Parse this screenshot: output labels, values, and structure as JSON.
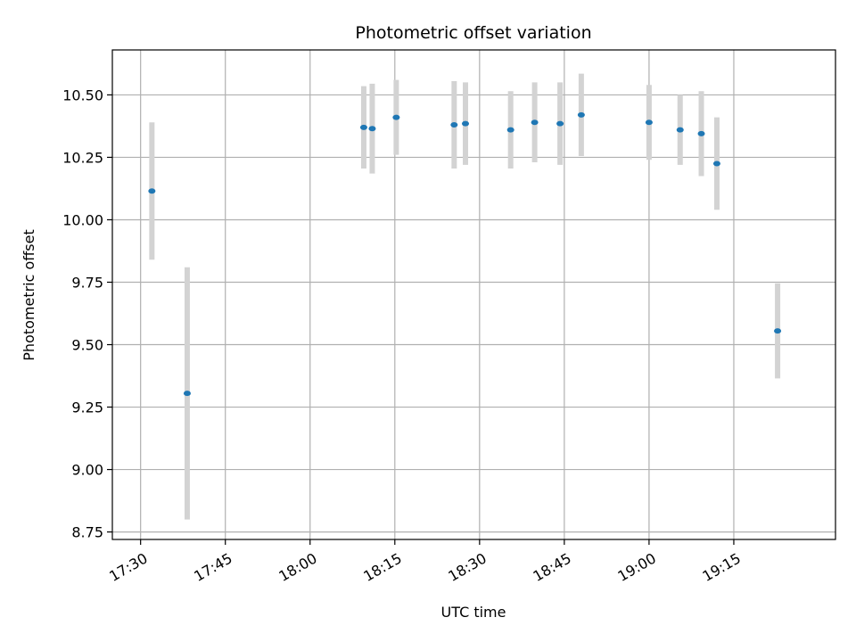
{
  "chart_data": {
    "type": "scatter",
    "title": "Photometric offset variation",
    "xlabel": "UTC time",
    "ylabel": "Photometric offset",
    "x_range": [
      "17:25",
      "19:33"
    ],
    "ylim": [
      8.72,
      10.68
    ],
    "x_ticks": [
      "17:30",
      "17:45",
      "18:00",
      "18:15",
      "18:30",
      "18:45",
      "19:00",
      "19:15"
    ],
    "y_ticks": [
      "8.75",
      "9.00",
      "9.25",
      "9.50",
      "9.75",
      "10.00",
      "10.25",
      "10.50"
    ],
    "grid": true,
    "point_color": "#1f77b4",
    "errorbar_color": "#d3d3d3",
    "series": [
      {
        "points": [
          {
            "x": "17:32:00",
            "y": 10.115,
            "err": 0.275
          },
          {
            "x": "17:38:15",
            "y": 9.305,
            "err": 0.505
          },
          {
            "x": "18:09:30",
            "y": 10.37,
            "err": 0.165
          },
          {
            "x": "18:11:00",
            "y": 10.365,
            "err": 0.18
          },
          {
            "x": "18:15:15",
            "y": 10.41,
            "err": 0.15
          },
          {
            "x": "18:25:30",
            "y": 10.38,
            "err": 0.175
          },
          {
            "x": "18:27:30",
            "y": 10.385,
            "err": 0.165
          },
          {
            "x": "18:35:30",
            "y": 10.36,
            "err": 0.155
          },
          {
            "x": "18:39:45",
            "y": 10.39,
            "err": 0.16
          },
          {
            "x": "18:44:15",
            "y": 10.385,
            "err": 0.165
          },
          {
            "x": "18:48:00",
            "y": 10.42,
            "err": 0.165
          },
          {
            "x": "19:00:00",
            "y": 10.39,
            "err": 0.15
          },
          {
            "x": "19:05:30",
            "y": 10.36,
            "err": 0.14
          },
          {
            "x": "19:09:15",
            "y": 10.345,
            "err": 0.17
          },
          {
            "x": "19:12:00",
            "y": 10.225,
            "err": 0.185
          },
          {
            "x": "19:22:45",
            "y": 9.555,
            "err": 0.19
          }
        ]
      }
    ]
  }
}
